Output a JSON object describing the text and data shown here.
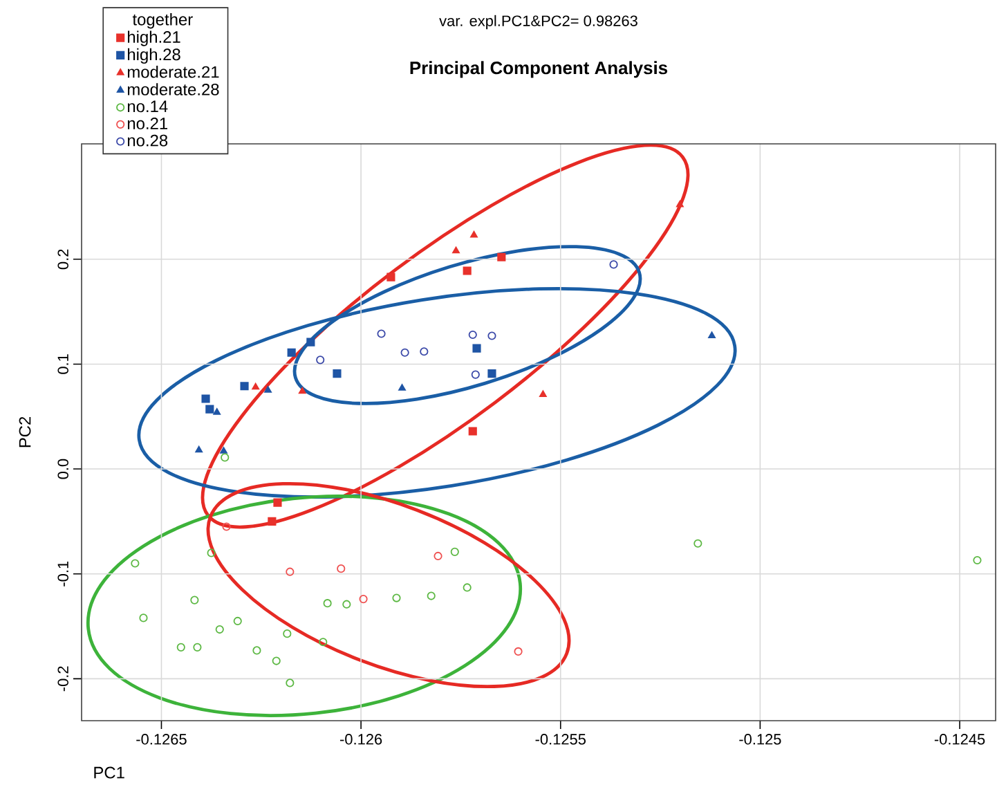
{
  "chart_data": {
    "type": "scatter",
    "title": "Principal Component Analysis",
    "xlabel": "PC1",
    "ylabel": "PC2",
    "legend_title": "together",
    "legend": "top left",
    "grid": true,
    "annotations": [
      "var. expl.PC1&PC2= 0.98263"
    ],
    "xlim": [
      -0.1267,
      -0.12441
    ],
    "ylim": [
      -0.24,
      0.31
    ],
    "xticks": [
      -0.1265,
      -0.126,
      -0.1255,
      -0.125,
      -0.1245
    ],
    "yticks": [
      -0.2,
      -0.1,
      {
        "value": 0,
        "label": "0.0"
      },
      0.1,
      0.2
    ],
    "series": [
      {
        "name": "high.21",
        "color": "#e8312b",
        "marker": "square",
        "x": [
          -0.125925,
          -0.125734,
          -0.125648,
          -0.12572,
          -0.126209,
          -0.126223
        ],
        "values": [
          0.183,
          0.189,
          0.202,
          0.036,
          -0.032,
          -0.05
        ]
      },
      {
        "name": "high.28",
        "color": "#1f55a5",
        "marker": "square",
        "x": [
          -0.126389,
          -0.126379,
          -0.126292,
          -0.126174,
          -0.126126,
          -0.12606,
          -0.12571,
          -0.125672
        ],
        "values": [
          0.067,
          0.057,
          0.079,
          0.111,
          0.121,
          0.091,
          0.115,
          0.091
        ]
      },
      {
        "name": "moderate.21",
        "color": "#e8312b",
        "marker": "triangle",
        "x": [
          -0.126264,
          -0.126147,
          -0.125762,
          -0.125717,
          -0.125201,
          -0.125544
        ],
        "values": [
          0.078,
          0.074,
          0.208,
          0.223,
          0.252,
          0.071
        ]
      },
      {
        "name": "moderate.28",
        "color": "#1f55a5",
        "marker": "triangle",
        "x": [
          -0.126361,
          -0.126233,
          -0.126406,
          -0.126344,
          -0.125897,
          -0.125121
        ],
        "values": [
          0.054,
          0.075,
          0.018,
          0.017,
          0.077,
          0.127
        ]
      },
      {
        "name": "no.14",
        "color": "#5cb843",
        "marker": "circle",
        "x": [
          -0.126341,
          -0.126566,
          -0.126375,
          -0.126417,
          -0.126545,
          -0.126309,
          -0.126354,
          -0.126451,
          -0.12641,
          -0.126261,
          -0.126185,
          -0.126212,
          -0.126178,
          -0.126095,
          -0.126084,
          -0.126036,
          -0.125911,
          -0.125824,
          -0.125765,
          -0.125734,
          -0.125156,
          -0.124456
        ],
        "values": [
          0.011,
          -0.09,
          -0.08,
          -0.125,
          -0.142,
          -0.145,
          -0.153,
          -0.17,
          -0.17,
          -0.173,
          -0.157,
          -0.183,
          -0.204,
          -0.165,
          -0.128,
          -0.129,
          -0.123,
          -0.121,
          -0.079,
          -0.113,
          -0.071,
          -0.087
        ]
      },
      {
        "name": "no.21",
        "color": "#ef4f4f",
        "marker": "circle",
        "x": [
          -0.126337,
          -0.126178,
          -0.12605,
          -0.125807,
          -0.125994,
          -0.125606
        ],
        "values": [
          -0.055,
          -0.098,
          -0.095,
          -0.083,
          -0.124,
          -0.174
        ]
      },
      {
        "name": "no.28",
        "color": "#3a48a8",
        "marker": "circle",
        "x": [
          -0.125949,
          -0.126102,
          -0.12589,
          -0.125842,
          -0.12572,
          -0.125672,
          -0.125713,
          -0.125367
        ],
        "values": [
          0.129,
          0.104,
          0.111,
          0.112,
          0.128,
          0.127,
          0.09,
          0.195
        ]
      }
    ]
  }
}
